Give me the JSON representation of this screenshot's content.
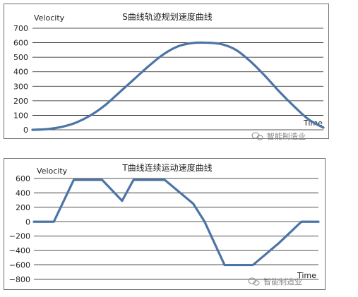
{
  "colors": {
    "curve": "#4c74a6",
    "grid": "#1a1a1a",
    "border": "#6e6e6e",
    "watermark": "#8a8a8a"
  },
  "watermark_icon": "wechat-logo-icon",
  "chart_data": [
    {
      "type": "line",
      "title": "S曲线轨迹规划速度曲线",
      "ylabel": "Velocity",
      "xlabel": "Time",
      "watermark": "智能制造业",
      "ylim": [
        0,
        700
      ],
      "yticks": [
        0,
        100,
        200,
        300,
        400,
        500,
        600,
        700
      ],
      "grid": true,
      "x": [
        0,
        0.05,
        0.1,
        0.15,
        0.2,
        0.25,
        0.3,
        0.35,
        0.4,
        0.45,
        0.5,
        0.55,
        0.6,
        0.65,
        0.7,
        0.75,
        0.8,
        0.85,
        0.9,
        0.95,
        1.0
      ],
      "series": [
        {
          "values": [
            0,
            5,
            20,
            50,
            100,
            170,
            260,
            350,
            440,
            520,
            575,
            598,
            600,
            590,
            550,
            470,
            370,
            260,
            160,
            70,
            15
          ]
        }
      ]
    },
    {
      "type": "line",
      "title": "T曲线连续运动速度曲线",
      "ylabel": "Velocity",
      "xlabel": "Time",
      "watermark": "智能制造业",
      "ylim": [
        -800,
        600
      ],
      "yticks": [
        600,
        400,
        200,
        0,
        -200,
        -400,
        -600,
        -800
      ],
      "grid": true,
      "x": [
        0,
        7,
        14,
        24,
        31,
        35,
        46,
        56,
        60,
        67,
        77,
        86,
        94,
        100
      ],
      "series": [
        {
          "values": [
            0,
            0,
            580,
            580,
            290,
            580,
            580,
            250,
            0,
            -600,
            -600,
            -300,
            0,
            0
          ]
        }
      ]
    }
  ]
}
